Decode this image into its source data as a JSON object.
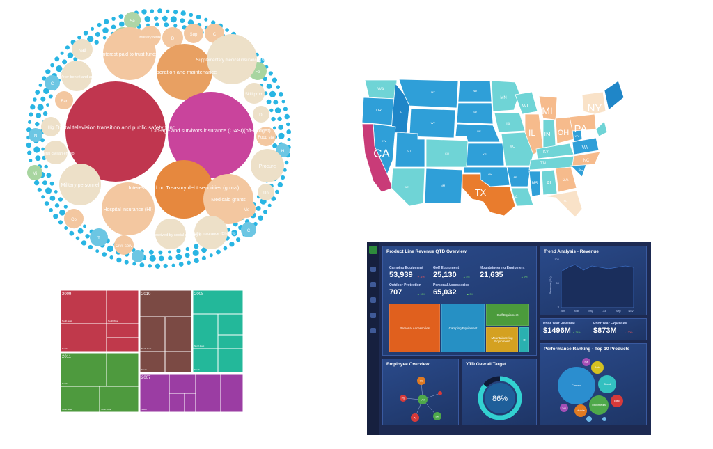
{
  "circle_pack": {
    "labels": {
      "digital_tv": "Digital television transition and public safety fund",
      "oasi": "Old-age and survivors insurance (OASI)(off-budget)",
      "interest_treasury": "Interest paid on Treasury debt securities (gross)",
      "operation": "Operation and maintenance",
      "interest_trust": "Interest paid to trust funds",
      "supp_medical": "Supplementary medical insurance (SM",
      "military_personnel": "Military personnel",
      "hospital_insurance": "Hospital insurance (HI)",
      "medicaid": "Medicaid grants",
      "disability": "Disability insurance (DI)(off-b",
      "interest_social": "Interest received by social security tr",
      "civil_serv": "Civil serv",
      "federal_civilian": "Federal civilian emplo",
      "military_retire": "Military retire",
      "veterans": "Veter benefi and an",
      "procurement": "Procure",
      "food": "Food sta",
      "skill": "Skill prom",
      "small": [
        "Se",
        "D",
        "Sup",
        "C",
        "Fe",
        "Di",
        "H",
        "Un",
        "Me",
        "Co",
        "T",
        "Mi",
        "Hig",
        "Ear",
        "C",
        "N",
        "Nati",
        "C"
      ]
    }
  },
  "us_map": {
    "states": [
      "WA",
      "OR",
      "MT",
      "ID",
      "WY",
      "NV",
      "UT",
      "CO",
      "CA",
      "AZ",
      "NM",
      "ND",
      "SD",
      "NE",
      "KS",
      "OK",
      "TX",
      "MN",
      "IA",
      "MO",
      "AR",
      "LA",
      "WI",
      "IL",
      "MI",
      "IN",
      "OH",
      "KY",
      "TN",
      "MS",
      "AL",
      "GA",
      "FL",
      "SC",
      "NC",
      "VA",
      "WV",
      "PA",
      "NY"
    ],
    "big_labels": [
      "CA",
      "TX",
      "IL",
      "IN",
      "OH",
      "PA",
      "MI"
    ]
  },
  "treemap": {
    "years": [
      "2009",
      "2010",
      "2008",
      "2011",
      "2007"
    ],
    "region_labels": [
      "North East",
      "North West",
      "South"
    ],
    "colors": {
      "2009": "#c0394b",
      "2010": "#7b4a44",
      "2008": "#23b89a",
      "2011": "#4e9a3e",
      "2007": "#9b3da3"
    }
  },
  "dashboard": {
    "product_line": {
      "title": "Product Line Revenue QTD Overview",
      "kpis": [
        {
          "label": "Camping Equipment",
          "value": "53,939",
          "delta": "-1%",
          "dir": "down"
        },
        {
          "label": "Golf Equipment",
          "value": "25,130",
          "delta": "8%",
          "dir": "up"
        },
        {
          "label": "Mountaineering Equipment",
          "value": "21,635",
          "delta": "9%",
          "dir": "up"
        },
        {
          "label": "Outdoor Protection",
          "value": "707",
          "delta": "10%",
          "dir": "up"
        },
        {
          "label": "Personal Accessories",
          "value": "65,032",
          "delta": "3%",
          "dir": "up"
        }
      ],
      "boxes": [
        "Personal Accessories",
        "Camping Equipment",
        "Golf Equipment",
        "Mountaineering Equipment",
        "O"
      ]
    },
    "trend": {
      "title": "Trend Analysis - Revenue",
      "ylabel": "Revenue ($M)",
      "months": [
        "Jan",
        "Mar",
        "May",
        "Jul",
        "Sep",
        "Nov"
      ],
      "yticks": [
        "100",
        "50",
        "0"
      ]
    },
    "prior": {
      "revenue_label": "Prior Year Revenue",
      "revenue_value": "$1496M",
      "revenue_delta": "24%",
      "expenses_label": "Prior Year Expenses",
      "expenses_value": "$873M",
      "expenses_delta": "-20%"
    },
    "employee": {
      "title": "Employee Overview",
      "nodes": [
        "VM",
        "CS",
        "PS",
        "AI",
        "SM"
      ]
    },
    "ytd": {
      "title": "YTD Overall Target",
      "value": "86%",
      "fraction": 0.86
    },
    "ranking": {
      "title": "Performance Ranking - Top 10 Products",
      "bubbles": [
        "Camera",
        "Stand",
        "Multimedia",
        "Mobile",
        "Auto",
        "Elec",
        "Pa",
        "Ca"
      ]
    }
  }
}
